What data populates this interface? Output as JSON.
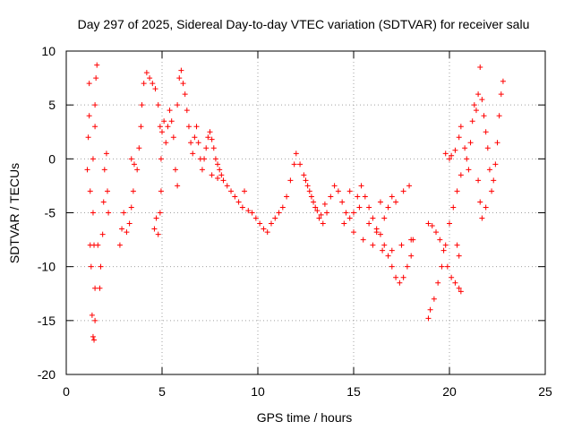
{
  "chart_data": {
    "type": "scatter",
    "title": "Day 297 of 2025, Sidereal Day-to-day VTEC variation (SDTVAR) for receiver salu",
    "xlabel": "GPS time / hours",
    "ylabel": "SDTVAR / TECUs",
    "xlim": [
      0,
      25
    ],
    "ylim": [
      -20,
      10
    ],
    "xticks": [
      0,
      5,
      10,
      15,
      20,
      25
    ],
    "yticks": [
      -20,
      -15,
      -10,
      -5,
      0,
      5,
      10
    ],
    "grid": true,
    "marker": "plus",
    "series_color": "#ff0000",
    "series": [
      {
        "name": "SDTVAR",
        "points": [
          [
            1.1,
            -1
          ],
          [
            1.15,
            2
          ],
          [
            1.2,
            4
          ],
          [
            1.2,
            7
          ],
          [
            1.25,
            -3
          ],
          [
            1.25,
            -8
          ],
          [
            1.3,
            -10
          ],
          [
            1.35,
            -14.5
          ],
          [
            1.4,
            -16.5
          ],
          [
            1.45,
            -16.8
          ],
          [
            1.5,
            -15
          ],
          [
            1.5,
            -12
          ],
          [
            1.45,
            -8
          ],
          [
            1.4,
            -5
          ],
          [
            1.4,
            0
          ],
          [
            1.5,
            3
          ],
          [
            1.5,
            5
          ],
          [
            1.55,
            7.5
          ],
          [
            1.6,
            8.7
          ],
          [
            1.65,
            -8
          ],
          [
            1.75,
            -12
          ],
          [
            1.8,
            -10
          ],
          [
            1.9,
            -7
          ],
          [
            1.95,
            -4
          ],
          [
            2.0,
            -1
          ],
          [
            2.1,
            0.5
          ],
          [
            2.15,
            -3
          ],
          [
            2.2,
            -5
          ],
          [
            2.8,
            -8
          ],
          [
            2.9,
            -6.5
          ],
          [
            3.0,
            -5
          ],
          [
            3.15,
            -6.8
          ],
          [
            3.3,
            -6
          ],
          [
            3.4,
            -4.5
          ],
          [
            3.5,
            -3
          ],
          [
            3.55,
            -0.5
          ],
          [
            3.4,
            0
          ],
          [
            3.7,
            -1
          ],
          [
            3.8,
            1
          ],
          [
            3.9,
            3
          ],
          [
            3.95,
            5
          ],
          [
            4.05,
            7
          ],
          [
            4.2,
            8
          ],
          [
            4.35,
            7.5
          ],
          [
            4.5,
            7
          ],
          [
            4.65,
            6.5
          ],
          [
            4.8,
            5
          ],
          [
            4.9,
            3
          ],
          [
            4.95,
            0
          ],
          [
            4.95,
            -3
          ],
          [
            4.9,
            -5
          ],
          [
            4.8,
            -7
          ],
          [
            4.6,
            -6.5
          ],
          [
            4.7,
            -5.5
          ],
          [
            5.0,
            2.5
          ],
          [
            5.1,
            3.5
          ],
          [
            5.2,
            1.5
          ],
          [
            5.3,
            3
          ],
          [
            5.4,
            4.5
          ],
          [
            5.5,
            3.5
          ],
          [
            5.6,
            2
          ],
          [
            5.7,
            -1
          ],
          [
            5.8,
            -2.5
          ],
          [
            5.8,
            5
          ],
          [
            5.9,
            7.5
          ],
          [
            6.0,
            8.2
          ],
          [
            6.1,
            7
          ],
          [
            6.2,
            6
          ],
          [
            6.3,
            4.5
          ],
          [
            6.4,
            3
          ],
          [
            6.5,
            1.5
          ],
          [
            6.6,
            0.5
          ],
          [
            6.7,
            2
          ],
          [
            6.8,
            3
          ],
          [
            6.9,
            1.5
          ],
          [
            7.0,
            0
          ],
          [
            7.1,
            -1
          ],
          [
            7.2,
            0
          ],
          [
            7.3,
            1
          ],
          [
            7.4,
            2
          ],
          [
            7.5,
            2.5
          ],
          [
            7.6,
            1.8
          ],
          [
            7.7,
            1
          ],
          [
            7.8,
            0
          ],
          [
            7.9,
            -0.5
          ],
          [
            8.0,
            -1
          ],
          [
            8.1,
            -1.5
          ],
          [
            8.2,
            -2
          ],
          [
            7.6,
            -1.5
          ],
          [
            7.9,
            -1.8
          ],
          [
            8.4,
            -2.5
          ],
          [
            8.6,
            -3
          ],
          [
            8.8,
            -3.5
          ],
          [
            9.0,
            -4
          ],
          [
            9.2,
            -4.5
          ],
          [
            9.3,
            -3
          ],
          [
            9.5,
            -4.8
          ],
          [
            9.7,
            -5
          ],
          [
            9.9,
            -5.5
          ],
          [
            10.1,
            -6
          ],
          [
            10.3,
            -6.5
          ],
          [
            10.5,
            -6.8
          ],
          [
            10.7,
            -6
          ],
          [
            10.9,
            -5.5
          ],
          [
            11.1,
            -5
          ],
          [
            11.3,
            -4.5
          ],
          [
            11.5,
            -3.5
          ],
          [
            11.7,
            -2
          ],
          [
            11.9,
            -0.5
          ],
          [
            12.0,
            0.5
          ],
          [
            12.2,
            -0.5
          ],
          [
            12.4,
            -1.5
          ],
          [
            12.6,
            -2.5
          ],
          [
            12.8,
            -3.5
          ],
          [
            13.0,
            -4.5
          ],
          [
            13.2,
            -5.5
          ],
          [
            13.4,
            -6
          ],
          [
            13.6,
            -5
          ],
          [
            13.8,
            -3.5
          ],
          [
            14.0,
            -2.5
          ],
          [
            14.2,
            -3
          ],
          [
            14.4,
            -4
          ],
          [
            14.6,
            -5
          ],
          [
            14.8,
            -5.5
          ],
          [
            15.0,
            -5
          ],
          [
            15.2,
            -3.5
          ],
          [
            15.4,
            -2.5
          ],
          [
            15.6,
            -3.5
          ],
          [
            15.8,
            -4.5
          ],
          [
            16.0,
            -5.5
          ],
          [
            16.2,
            -6.5
          ],
          [
            16.4,
            -7
          ],
          [
            16.6,
            -8
          ],
          [
            16.8,
            -9
          ],
          [
            17.0,
            -10
          ],
          [
            17.2,
            -11
          ],
          [
            17.4,
            -11.5
          ],
          [
            17.6,
            -11
          ],
          [
            17.8,
            -10
          ],
          [
            18.0,
            -9
          ],
          [
            18.1,
            -7.5
          ],
          [
            12.5,
            -2
          ],
          [
            12.7,
            -3
          ],
          [
            12.9,
            -4
          ],
          [
            13.1,
            -4.8
          ],
          [
            13.3,
            -5.2
          ],
          [
            13.5,
            -4.2
          ],
          [
            14.5,
            -6
          ],
          [
            15.0,
            -6.8
          ],
          [
            15.5,
            -7.5
          ],
          [
            16.0,
            -8
          ],
          [
            16.5,
            -8.5
          ],
          [
            17.0,
            -8.5
          ],
          [
            17.5,
            -8
          ],
          [
            18.0,
            -7.5
          ],
          [
            16.4,
            -4
          ],
          [
            16.8,
            -4.5
          ],
          [
            17.2,
            -4
          ],
          [
            17.6,
            -3
          ],
          [
            17.9,
            -2.5
          ],
          [
            14.8,
            -3
          ],
          [
            15.3,
            -4.5
          ],
          [
            15.8,
            -6
          ],
          [
            16.2,
            -6.8
          ],
          [
            16.6,
            -5.5
          ],
          [
            17.0,
            -3.5
          ],
          [
            18.9,
            -14.8
          ],
          [
            19.0,
            -14
          ],
          [
            19.2,
            -13
          ],
          [
            19.4,
            -11.5
          ],
          [
            19.6,
            -10
          ],
          [
            19.8,
            -8
          ],
          [
            20.0,
            -6
          ],
          [
            20.2,
            -4.5
          ],
          [
            20.4,
            -3
          ],
          [
            20.6,
            -1.5
          ],
          [
            18.9,
            -6
          ],
          [
            19.1,
            -6.2
          ],
          [
            19.3,
            -6.8
          ],
          [
            19.5,
            -7.5
          ],
          [
            19.7,
            -8.5
          ],
          [
            19.9,
            -10
          ],
          [
            20.1,
            -11
          ],
          [
            20.3,
            -11.5
          ],
          [
            20.5,
            -12
          ],
          [
            20.6,
            -12.3
          ],
          [
            20.5,
            -9
          ],
          [
            20.4,
            -8
          ],
          [
            19.8,
            0.5
          ],
          [
            20.0,
            0
          ],
          [
            20.1,
            0.3
          ],
          [
            20.3,
            0.8
          ],
          [
            20.5,
            2
          ],
          [
            20.6,
            3
          ],
          [
            20.8,
            1
          ],
          [
            20.9,
            0
          ],
          [
            21.0,
            -1
          ],
          [
            21.1,
            1.5
          ],
          [
            21.2,
            3.5
          ],
          [
            21.3,
            5
          ],
          [
            21.4,
            4.5
          ],
          [
            21.5,
            6
          ],
          [
            21.6,
            8.5
          ],
          [
            21.7,
            5.5
          ],
          [
            21.8,
            4
          ],
          [
            21.9,
            2.5
          ],
          [
            22.0,
            1
          ],
          [
            22.1,
            -1
          ],
          [
            22.2,
            -3
          ],
          [
            22.3,
            -2
          ],
          [
            22.4,
            -0.5
          ],
          [
            22.5,
            1.5
          ],
          [
            22.6,
            4
          ],
          [
            22.7,
            6
          ],
          [
            22.8,
            7.2
          ],
          [
            21.5,
            -2
          ],
          [
            21.6,
            -4
          ],
          [
            21.7,
            -5.5
          ],
          [
            21.9,
            -4.5
          ]
        ]
      }
    ]
  }
}
